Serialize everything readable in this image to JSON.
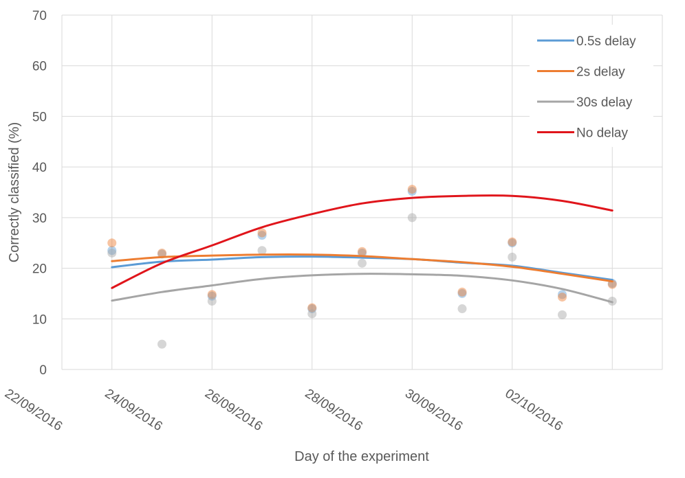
{
  "chart_data": {
    "type": "scatter",
    "title": "",
    "xlabel": "Day of the experiment",
    "ylabel": "Correctly classified (%)",
    "ylim": [
      0,
      70
    ],
    "yticks": [
      0,
      10,
      20,
      30,
      40,
      50,
      60,
      70
    ],
    "xlim": [
      "2016-09-21",
      "2016-10-03"
    ],
    "xticks": [
      "2016-09-22",
      "2016-09-24",
      "2016-09-26",
      "2016-09-28",
      "2016-09-30",
      "2016-10-02"
    ],
    "xtick_labels": [
      "22/09/2016",
      "24/09/2016",
      "26/09/2016",
      "28/09/2016",
      "30/09/2016",
      "02/10/2016"
    ],
    "grid": true,
    "legend_position": "top-right",
    "series": [
      {
        "name": "0.5s delay",
        "color": "#5B9BD5",
        "x": [
          "2016-09-22",
          "2016-09-23",
          "2016-09-24",
          "2016-09-25",
          "2016-09-26",
          "2016-09-27",
          "2016-09-28",
          "2016-09-29",
          "2016-09-30",
          "2016-10-01",
          "2016-10-02"
        ],
        "points": [
          23.5,
          22.8,
          14.5,
          26.5,
          12,
          23,
          35.2,
          15,
          25,
          14.8,
          17
        ],
        "trend": [
          20.2,
          21.3,
          21.7,
          22.2,
          22.3,
          22.1,
          21.8,
          21.1,
          20.5,
          19.1,
          17.7
        ]
      },
      {
        "name": "2s delay",
        "color": "#ED7D31",
        "x": [
          "2016-09-22",
          "2016-09-23",
          "2016-09-24",
          "2016-09-25",
          "2016-09-26",
          "2016-09-27",
          "2016-09-28",
          "2016-09-29",
          "2016-09-30",
          "2016-10-01",
          "2016-10-02"
        ],
        "points": [
          25,
          23,
          14.8,
          27,
          12.2,
          23.3,
          35.6,
          15.3,
          25.2,
          14.3,
          16.8
        ],
        "trend": [
          21.4,
          22.2,
          22.5,
          22.7,
          22.7,
          22.4,
          21.8,
          21.2,
          20.3,
          18.9,
          17.4
        ]
      },
      {
        "name": "30s delay",
        "color": "#A5A5A5",
        "x": [
          "2016-09-22",
          "2016-09-23",
          "2016-09-24",
          "2016-09-25",
          "2016-09-26",
          "2016-09-27",
          "2016-09-28",
          "2016-09-29",
          "2016-09-30",
          "2016-10-01",
          "2016-10-02"
        ],
        "points": [
          23,
          5,
          13.5,
          23.5,
          11,
          21,
          30,
          12,
          22.2,
          10.8,
          13.5
        ],
        "trend": [
          13.6,
          15.3,
          16.6,
          17.9,
          18.6,
          18.9,
          18.8,
          18.5,
          17.6,
          15.9,
          13.3
        ]
      },
      {
        "name": "No delay",
        "color": "#E0151B",
        "x": [
          "2016-09-22",
          "2016-09-23",
          "2016-09-24",
          "2016-09-25",
          "2016-09-26",
          "2016-09-27",
          "2016-09-28",
          "2016-09-29",
          "2016-09-30",
          "2016-10-01",
          "2016-10-02"
        ],
        "points": [],
        "trend": [
          16.1,
          21.0,
          24.5,
          28.1,
          30.7,
          32.8,
          33.9,
          34.3,
          34.3,
          33.3,
          31.4
        ]
      }
    ]
  }
}
